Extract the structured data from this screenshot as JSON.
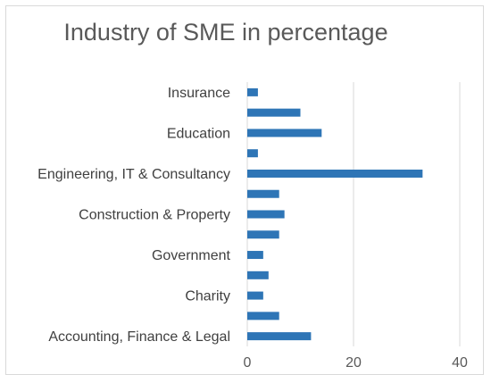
{
  "chart_data": {
    "type": "bar",
    "orientation": "horizontal",
    "title": "Industry of SME in percentage",
    "categories": [
      "Accounting, Finance & Legal",
      "",
      "Charity",
      "",
      "Government",
      "",
      "Construction & Property",
      "",
      "Engineering, IT & Consultancy",
      "",
      "Education",
      "",
      "Insurance"
    ],
    "values": [
      12,
      6,
      3,
      4,
      3,
      6,
      7,
      6,
      33,
      2,
      14,
      10,
      2
    ],
    "xlim": [
      0,
      40
    ],
    "xticks": [
      0,
      20,
      40
    ],
    "grid": true,
    "legend": "none",
    "colors": {
      "bar": "#2e75b6",
      "grid": "#d9d9d9",
      "title": "#595959",
      "text": "#404040"
    }
  }
}
